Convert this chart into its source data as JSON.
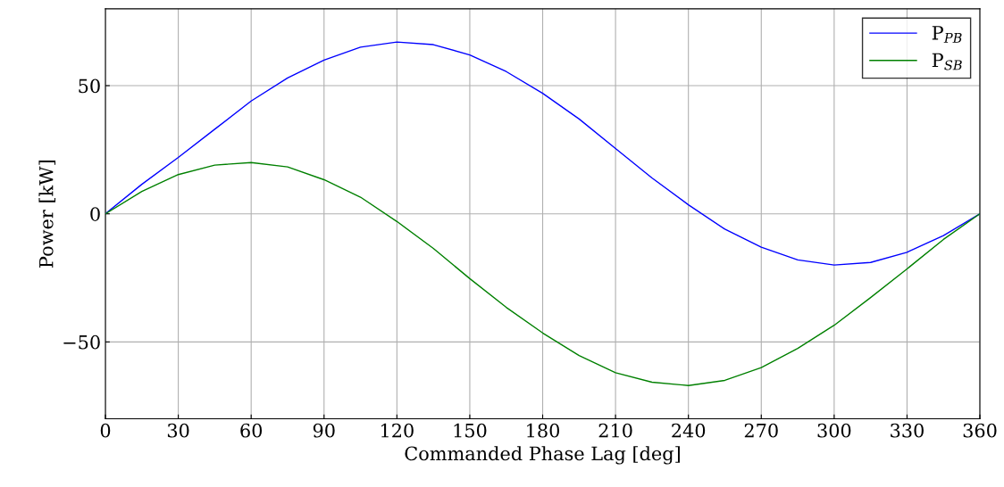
{
  "chart_data": {
    "type": "line",
    "xlabel": "Commanded Phase Lag [deg]",
    "ylabel": "Power [kW]",
    "x": [
      0,
      15,
      30,
      45,
      60,
      75,
      90,
      105,
      120,
      135,
      150,
      165,
      180,
      195,
      210,
      225,
      240,
      255,
      270,
      285,
      300,
      315,
      330,
      345,
      360
    ],
    "series": [
      {
        "name": "P$_{PB}$",
        "color": "#0000ff",
        "values": [
          0,
          11.5,
          22,
          33,
          44,
          53,
          60,
          65,
          67,
          66,
          62,
          55.5,
          47,
          37,
          25.5,
          14,
          3.5,
          -6,
          -13,
          -18,
          -20,
          -19,
          -15,
          -8.5,
          0
        ]
      },
      {
        "name": "P$_{SB}$",
        "color": "#008000",
        "values": [
          0,
          8.7,
          15.3,
          19,
          20,
          18.3,
          13.3,
          6.5,
          -3,
          -13.5,
          -25.3,
          -36.5,
          -46.5,
          -55.3,
          -62,
          -65.7,
          -67,
          -65,
          -60,
          -52.5,
          -43.5,
          -32.7,
          -21.5,
          -10,
          0
        ]
      }
    ],
    "xlim": [
      0,
      360
    ],
    "xticks": [
      0,
      30,
      60,
      90,
      120,
      150,
      180,
      210,
      240,
      270,
      300,
      330,
      360
    ],
    "ylim": [
      -80,
      80
    ],
    "yticks": [
      {
        "value": -50,
        "label": "−50"
      },
      0,
      50
    ],
    "grid": true,
    "legend": "top right",
    "marker": "none",
    "line_style": "solid"
  }
}
